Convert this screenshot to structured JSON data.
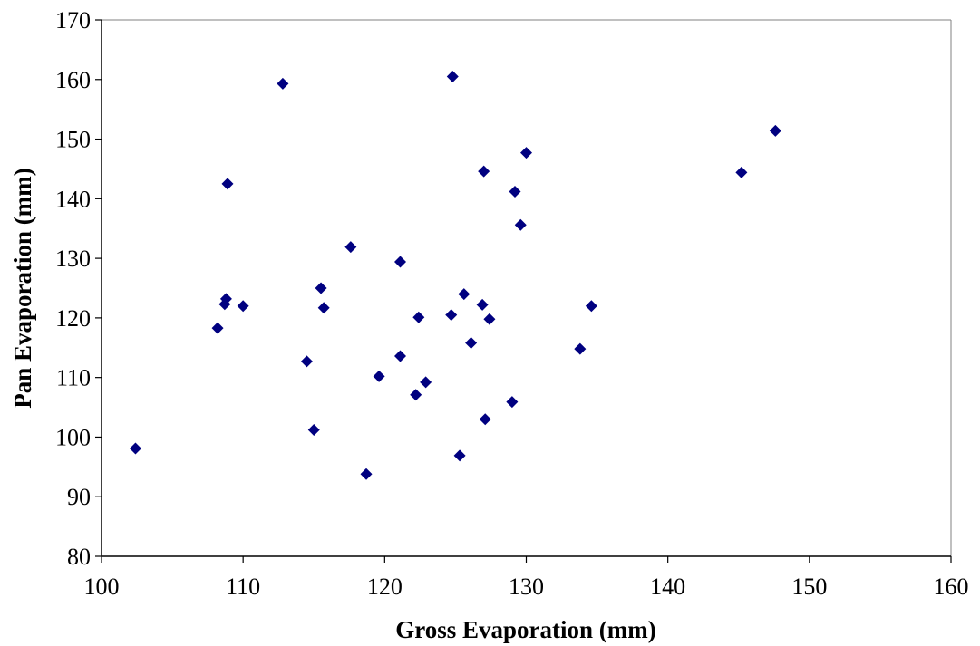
{
  "chart_data": {
    "type": "scatter",
    "title": "",
    "xlabel": "Gross Evaporation (mm)",
    "ylabel": "Pan Evaporation (mm)",
    "xlim": [
      100,
      160
    ],
    "ylim": [
      80,
      170
    ],
    "xticks": [
      100,
      110,
      120,
      130,
      140,
      150,
      160
    ],
    "yticks": [
      80,
      90,
      100,
      110,
      120,
      130,
      140,
      150,
      160,
      170
    ],
    "grid": false,
    "legend": "none",
    "marker": "diamond",
    "colors": {
      "marker": "#000080",
      "axis": "#000000",
      "frame": "#808080",
      "background": "#ffffff"
    },
    "points": [
      {
        "x": 102.4,
        "y": 98.1
      },
      {
        "x": 108.2,
        "y": 118.3
      },
      {
        "x": 108.7,
        "y": 122.3
      },
      {
        "x": 108.8,
        "y": 123.2
      },
      {
        "x": 108.9,
        "y": 142.5
      },
      {
        "x": 110.0,
        "y": 122.0
      },
      {
        "x": 112.8,
        "y": 159.3
      },
      {
        "x": 114.5,
        "y": 112.7
      },
      {
        "x": 115.0,
        "y": 101.2
      },
      {
        "x": 115.5,
        "y": 125.0
      },
      {
        "x": 115.7,
        "y": 121.7
      },
      {
        "x": 117.6,
        "y": 131.9
      },
      {
        "x": 118.7,
        "y": 93.8
      },
      {
        "x": 119.6,
        "y": 110.2
      },
      {
        "x": 121.1,
        "y": 129.4
      },
      {
        "x": 121.1,
        "y": 113.6
      },
      {
        "x": 122.2,
        "y": 107.1
      },
      {
        "x": 122.4,
        "y": 120.1
      },
      {
        "x": 122.9,
        "y": 109.2
      },
      {
        "x": 124.7,
        "y": 120.5
      },
      {
        "x": 124.8,
        "y": 160.5
      },
      {
        "x": 125.3,
        "y": 96.9
      },
      {
        "x": 125.6,
        "y": 124.0
      },
      {
        "x": 126.1,
        "y": 115.8
      },
      {
        "x": 126.9,
        "y": 122.2
      },
      {
        "x": 127.0,
        "y": 144.6
      },
      {
        "x": 127.1,
        "y": 103.0
      },
      {
        "x": 127.4,
        "y": 119.8
      },
      {
        "x": 129.0,
        "y": 105.9
      },
      {
        "x": 129.2,
        "y": 141.2
      },
      {
        "x": 129.6,
        "y": 135.6
      },
      {
        "x": 130.0,
        "y": 147.7
      },
      {
        "x": 133.8,
        "y": 114.8
      },
      {
        "x": 134.6,
        "y": 122.0
      },
      {
        "x": 145.2,
        "y": 144.4
      },
      {
        "x": 147.6,
        "y": 151.4
      }
    ]
  }
}
